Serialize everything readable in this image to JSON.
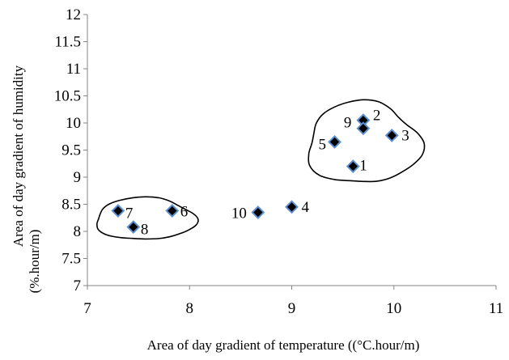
{
  "chart_data": {
    "type": "scatter",
    "title": "",
    "xlabel": "Area of day gradient  of temperature    ((°C.hour/m)",
    "ylabel_line1": "Area of day gradient  of humidity",
    "ylabel_line2": "(%.hour/m)",
    "xlim": [
      7,
      11
    ],
    "ylim": [
      7,
      12
    ],
    "x_ticks": [
      7,
      8,
      9,
      10,
      11
    ],
    "y_ticks": [
      7,
      7.5,
      8,
      8.5,
      9,
      9.5,
      10,
      10.5,
      11,
      11.5,
      12
    ],
    "grid": false,
    "legend": "none",
    "marker_fill": "#000000",
    "marker_edge": "#5B8FD0",
    "points": [
      {
        "label": "1",
        "x": 9.6,
        "y": 9.2
      },
      {
        "label": "2",
        "x": 9.7,
        "y": 10.05
      },
      {
        "label": "3",
        "x": 9.98,
        "y": 9.77
      },
      {
        "label": "4",
        "x": 9.0,
        "y": 8.45
      },
      {
        "label": "5",
        "x": 9.42,
        "y": 9.65
      },
      {
        "label": "6",
        "x": 7.83,
        "y": 8.38
      },
      {
        "label": "7",
        "x": 7.3,
        "y": 8.38
      },
      {
        "label": "8",
        "x": 7.45,
        "y": 8.08
      },
      {
        "label": "9",
        "x": 9.7,
        "y": 9.9
      },
      {
        "label": "10",
        "x": 8.67,
        "y": 8.35
      }
    ],
    "annotations": [
      {
        "shape": "cluster-outline",
        "members": [
          "1",
          "2",
          "3",
          "5",
          "9"
        ]
      },
      {
        "shape": "cluster-outline",
        "members": [
          "6",
          "7",
          "8"
        ]
      }
    ]
  }
}
